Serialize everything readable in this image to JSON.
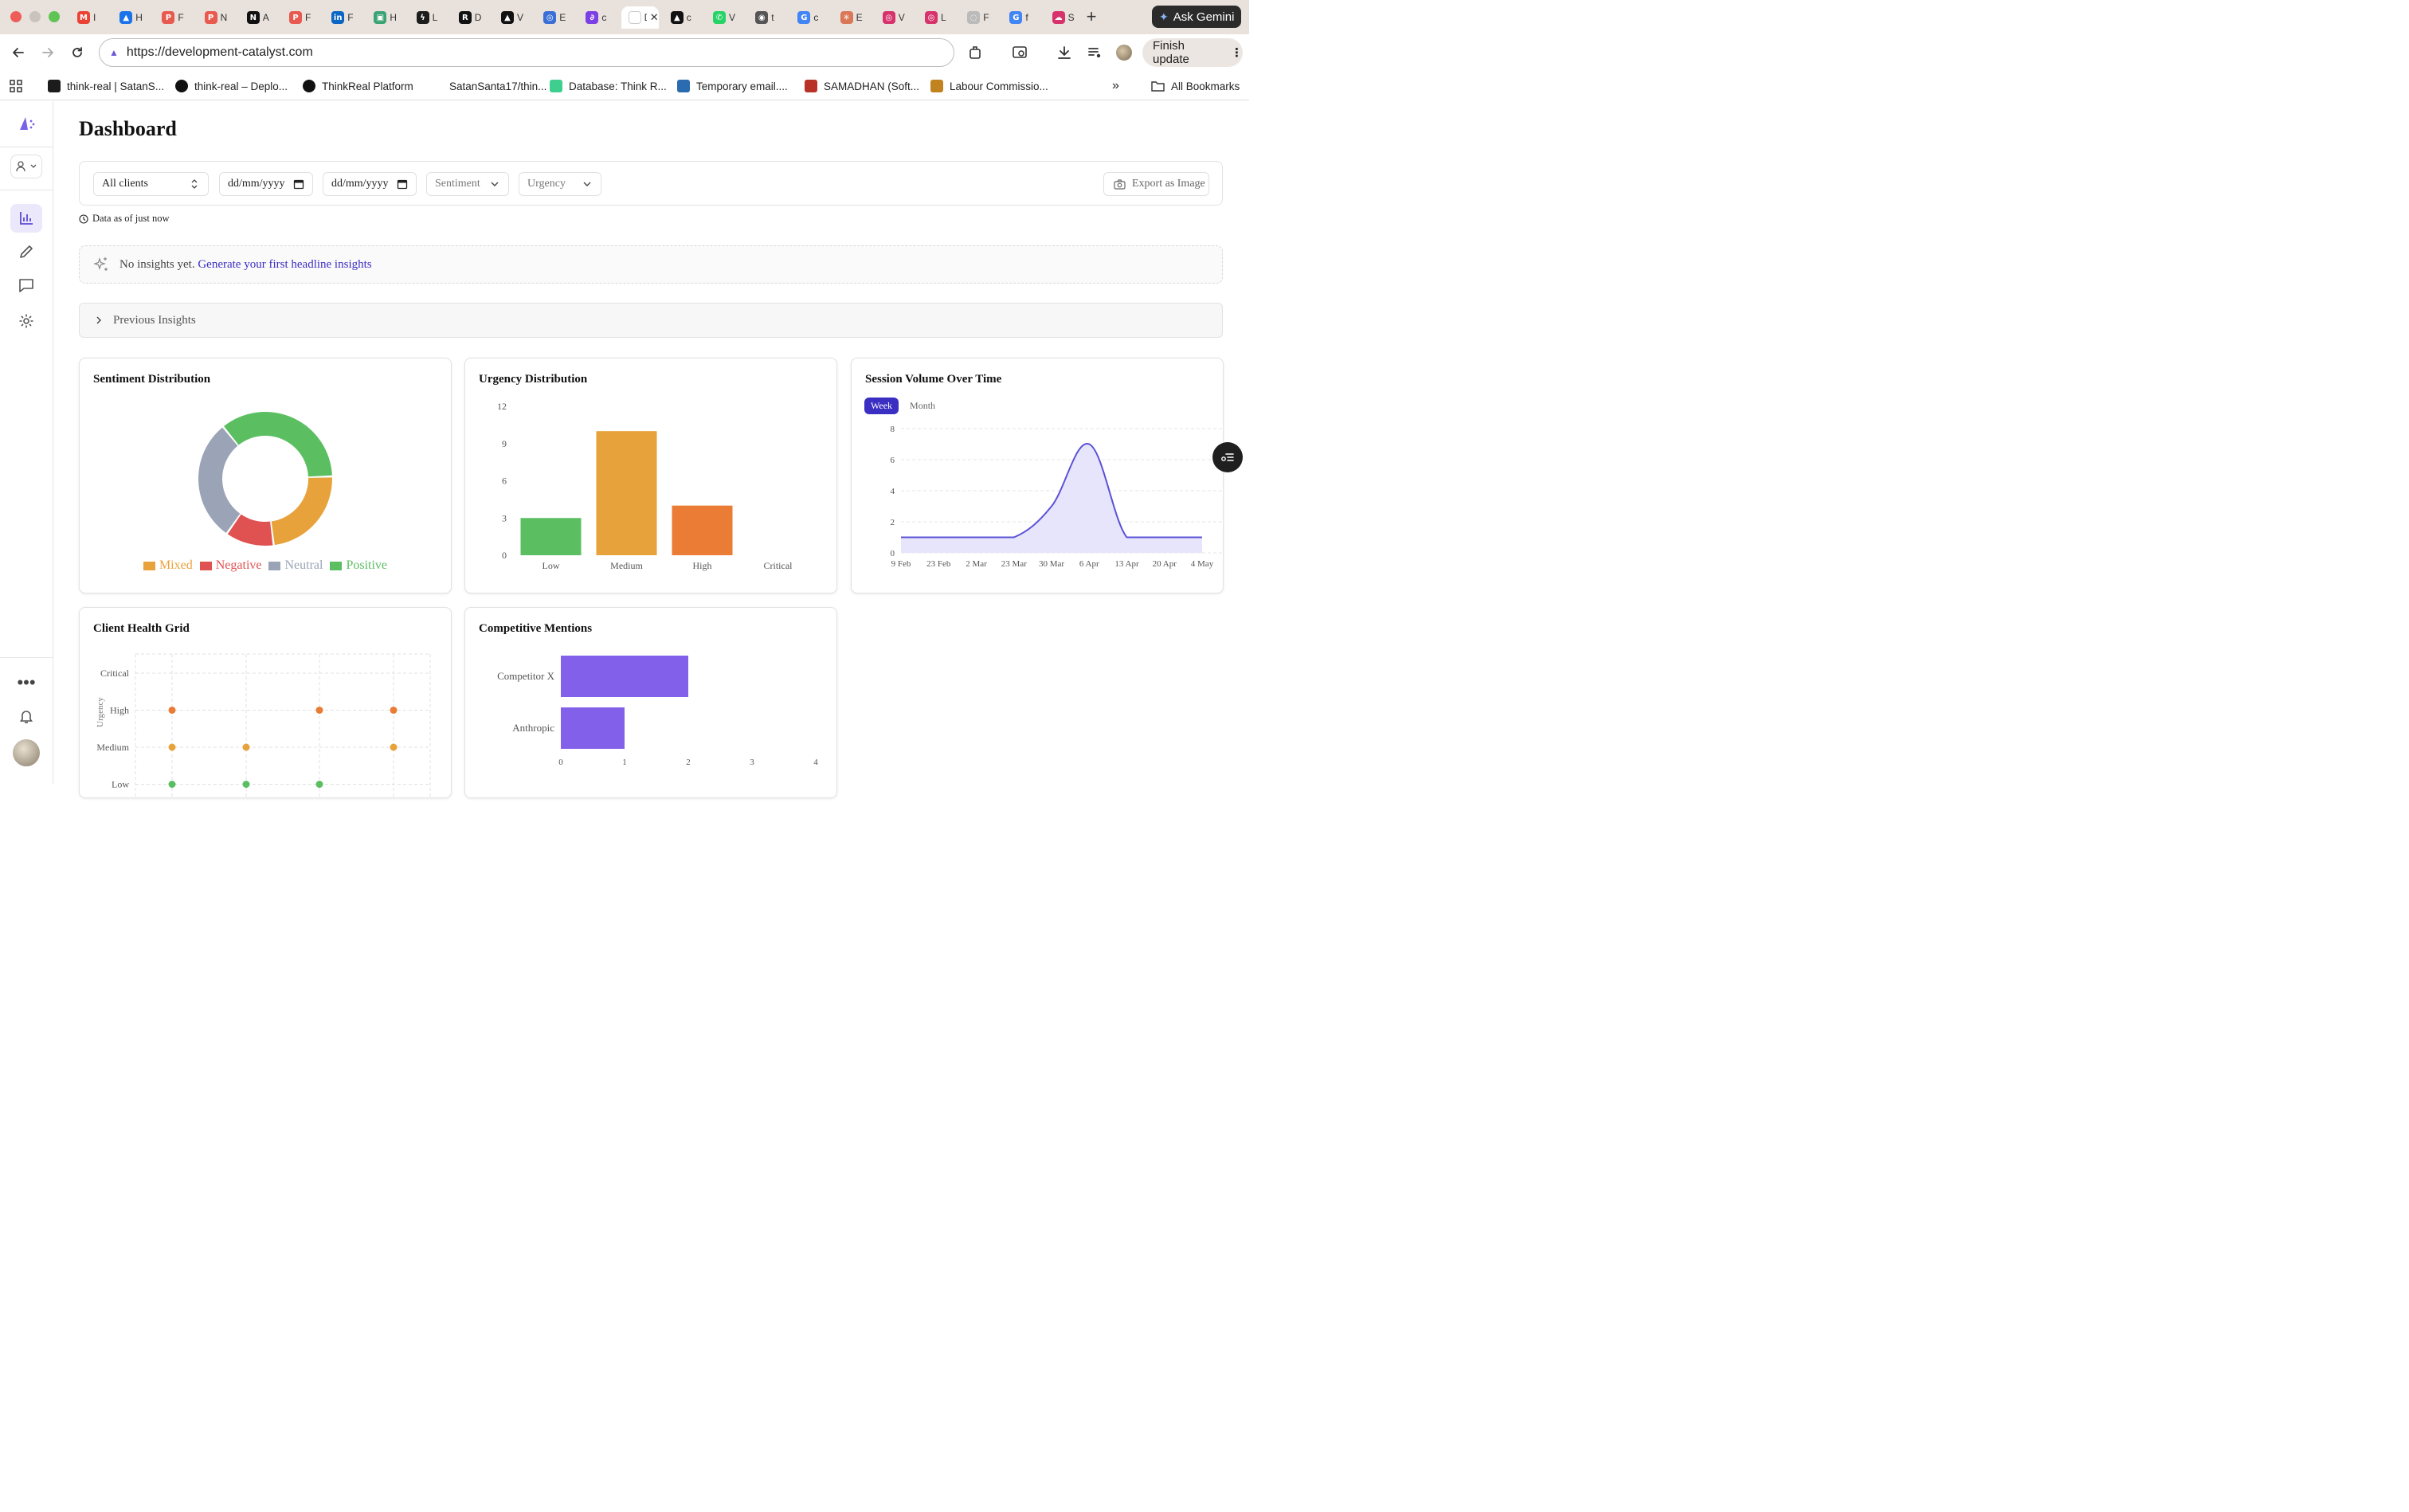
{
  "browser": {
    "tabs": [
      {
        "icon": "gmail-icon",
        "initial": "M",
        "label": "I",
        "color": "#ea4335"
      },
      {
        "icon": "drive-icon",
        "initial": "▲",
        "label": "H",
        "color": "#1a73e8"
      },
      {
        "icon": "p-app-icon",
        "initial": "P",
        "label": "F",
        "color": "#e85a4f"
      },
      {
        "icon": "p-app-icon",
        "initial": "P",
        "label": "N",
        "color": "#e85a4f"
      },
      {
        "icon": "notion-icon",
        "initial": "N",
        "label": "A",
        "color": "#111111"
      },
      {
        "icon": "p-app-icon",
        "initial": "P",
        "label": "F",
        "color": "#e85a4f"
      },
      {
        "icon": "linkedin-icon",
        "initial": "in",
        "label": "F",
        "color": "#0a66c2"
      },
      {
        "icon": "monitor-icon",
        "initial": "▣",
        "label": "H",
        "color": "#3aa373"
      },
      {
        "icon": "supabase-icon",
        "initial": "ϟ",
        "label": "L",
        "color": "#1c1c1c"
      },
      {
        "icon": "r-app-icon",
        "initial": "R",
        "label": "D",
        "color": "#111111"
      },
      {
        "icon": "vercel-icon",
        "initial": "▲",
        "label": "V",
        "color": "#111111"
      },
      {
        "icon": "globe-icon",
        "initial": "◎",
        "label": "E",
        "color": "#3b6fd6"
      },
      {
        "icon": "c-app-icon",
        "initial": "∂",
        "label": "c",
        "color": "#7b3fe4"
      },
      {
        "icon": "page-icon",
        "initial": "",
        "label": "D",
        "color": "#ffffff"
      },
      {
        "icon": "vercel-icon",
        "initial": "▲",
        "label": "c",
        "color": "#111111"
      },
      {
        "icon": "whatsapp-icon",
        "initial": "✆",
        "label": "V",
        "color": "#25d366"
      },
      {
        "icon": "github-icon",
        "initial": "◉",
        "label": "t",
        "color": "#555555"
      },
      {
        "icon": "google-icon",
        "initial": "G",
        "label": "c",
        "color": "#4285f4"
      },
      {
        "icon": "claude-icon",
        "initial": "✳",
        "label": "E",
        "color": "#d97757"
      },
      {
        "icon": "target-icon",
        "initial": "◎",
        "label": "V",
        "color": "#d6336c"
      },
      {
        "icon": "target-icon",
        "initial": "◎",
        "label": "L",
        "color": "#d6336c"
      },
      {
        "icon": "loading-icon",
        "initial": "◌",
        "label": "F",
        "color": "#bbbbbb"
      },
      {
        "icon": "google-icon",
        "initial": "G",
        "label": "f",
        "color": "#4285f4"
      },
      {
        "icon": "cloud-icon",
        "initial": "☁",
        "label": "S",
        "color": "#d6336c"
      }
    ],
    "gemini_label": "Ask Gemini",
    "url": "https://development-catalyst.com",
    "finish_update": "Finish update",
    "bookmarks": [
      {
        "label": "think-real | SatanS...",
        "color": "#1c1c1c"
      },
      {
        "label": "think-real – Deplo...",
        "color": "#111111"
      },
      {
        "label": "ThinkReal Platform",
        "color": "#111111"
      },
      {
        "label": "SatanSanta17/thin...",
        "color": "#ffffff"
      },
      {
        "label": "Database: Think R...",
        "color": "#3ecf8e"
      },
      {
        "label": "Temporary email....",
        "color": "#2b6cb0"
      },
      {
        "label": "SAMADHAN (Soft...",
        "color": "#b83227"
      },
      {
        "label": "Labour Commissio...",
        "color": "#c0831f"
      }
    ],
    "all_bookmarks": "All Bookmarks"
  },
  "page": {
    "title": "Dashboard",
    "filters": {
      "client": "All clients",
      "date_from": "dd/mm/yyyy",
      "date_to": "dd/mm/yyyy",
      "sentiment": "Sentiment",
      "urgency": "Urgency",
      "export": "Export as Image"
    },
    "data_asof": "Data as of just now",
    "insights": {
      "empty_text": "No insights yet.",
      "link_text": "Generate your first headline insights"
    },
    "previous_insights": "Previous Insights",
    "cards": {
      "sentiment": "Sentiment Distribution",
      "urgency": "Urgency Distribution",
      "session": "Session Volume Over Time",
      "health": "Client Health Grid",
      "competitive": "Competitive Mentions"
    },
    "session_toggle": {
      "week": "Week",
      "month": "Month"
    }
  },
  "colors": {
    "mixed": "#e8a23b",
    "negative": "#e05252",
    "neutral": "#9aa4b6",
    "positive": "#5bbf62",
    "low": "#5bbf62",
    "medium": "#e8a23b",
    "high": "#ea7c35",
    "line": "#5b52d6",
    "bar_purple": "#8360ea"
  },
  "chart_data": [
    {
      "type": "pie",
      "title": "Sentiment Distribution",
      "categories": [
        "Mixed",
        "Negative",
        "Neutral",
        "Positive"
      ],
      "values": [
        4,
        2,
        5,
        6
      ],
      "legend": "bottom"
    },
    {
      "type": "bar",
      "title": "Urgency Distribution",
      "categories": [
        "Low",
        "Medium",
        "High",
        "Critical"
      ],
      "values": [
        3,
        10,
        4,
        0
      ],
      "yticks": [
        0,
        3,
        6,
        9,
        12
      ],
      "ylim": [
        0,
        12
      ],
      "grid": false
    },
    {
      "type": "area",
      "title": "Session Volume Over Time",
      "x": [
        "9 Feb",
        "23 Feb",
        "2 Mar",
        "23 Mar",
        "30 Mar",
        "6 Apr",
        "13 Apr",
        "20 Apr",
        "4 May"
      ],
      "y": [
        1,
        1,
        1,
        1,
        3,
        7,
        1,
        1,
        1
      ],
      "yticks": [
        0,
        2,
        4,
        6,
        8
      ],
      "ylim": [
        0,
        8
      ],
      "grid": true
    },
    {
      "type": "scatter",
      "title": "Client Health Grid",
      "ylabel": "Urgency",
      "y_categories": [
        "Critical",
        "High",
        "Medium",
        "Low"
      ],
      "points": [
        {
          "col": 1,
          "urgency": "High"
        },
        {
          "col": 3,
          "urgency": "High"
        },
        {
          "col": 4,
          "urgency": "High"
        },
        {
          "col": 1,
          "urgency": "Medium"
        },
        {
          "col": 2,
          "urgency": "Medium"
        },
        {
          "col": 4,
          "urgency": "Medium"
        },
        {
          "col": 1,
          "urgency": "Low"
        },
        {
          "col": 2,
          "urgency": "Low"
        },
        {
          "col": 3,
          "urgency": "Low"
        }
      ],
      "grid": true
    },
    {
      "type": "bar",
      "orientation": "horizontal",
      "title": "Competitive Mentions",
      "categories": [
        "Competitor X",
        "Anthropic"
      ],
      "values": [
        2,
        1
      ],
      "xticks": [
        0,
        1,
        2,
        3,
        4
      ],
      "xlim": [
        0,
        4
      ]
    }
  ]
}
